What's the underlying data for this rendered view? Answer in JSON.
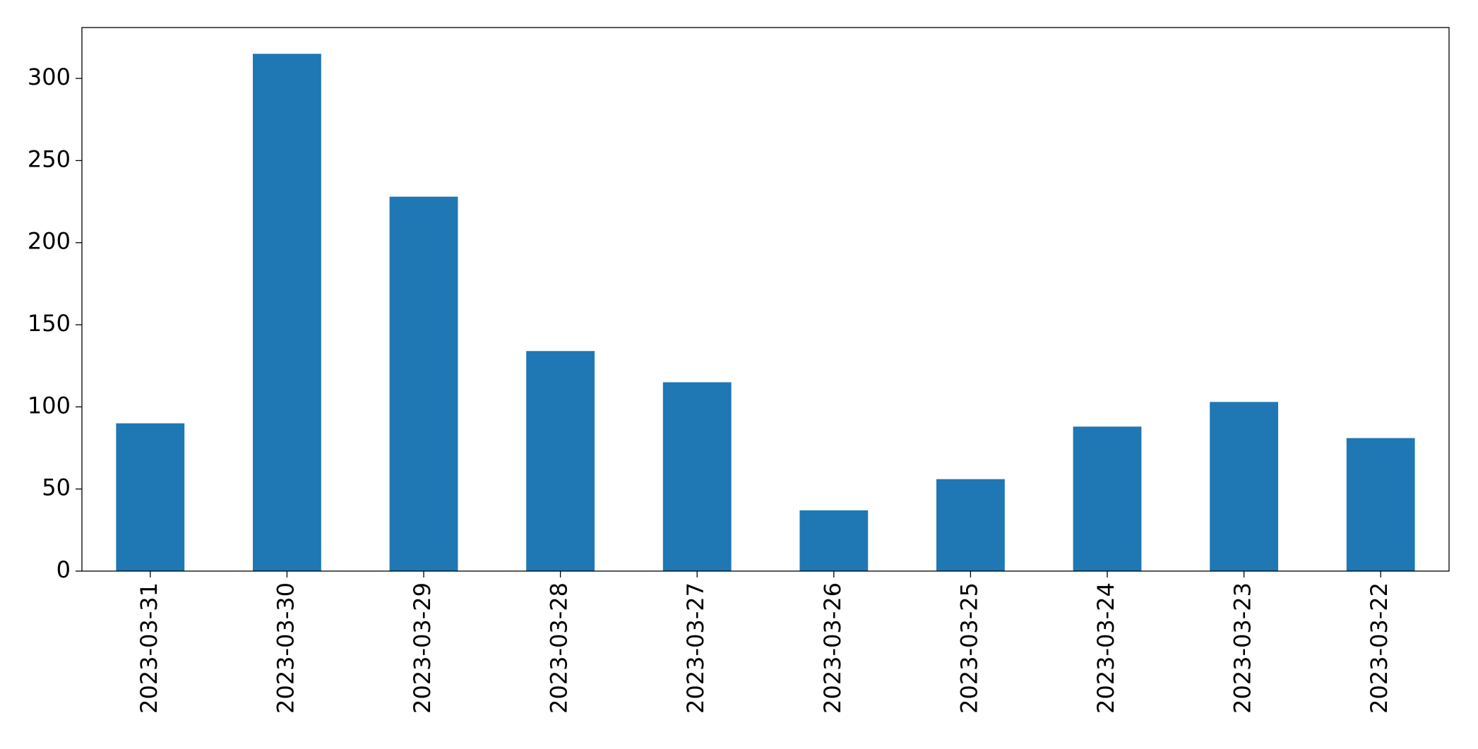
{
  "chart_data": {
    "type": "bar",
    "categories": [
      "2023-03-31",
      "2023-03-30",
      "2023-03-29",
      "2023-03-28",
      "2023-03-27",
      "2023-03-26",
      "2023-03-25",
      "2023-03-24",
      "2023-03-23",
      "2023-03-22"
    ],
    "values": [
      90,
      315,
      228,
      134,
      115,
      37,
      56,
      88,
      103,
      81
    ],
    "color": "#1f77b4",
    "ylim": [
      0,
      331
    ],
    "yticks": [
      0,
      50,
      100,
      150,
      200,
      250,
      300
    ],
    "grid": false
  }
}
